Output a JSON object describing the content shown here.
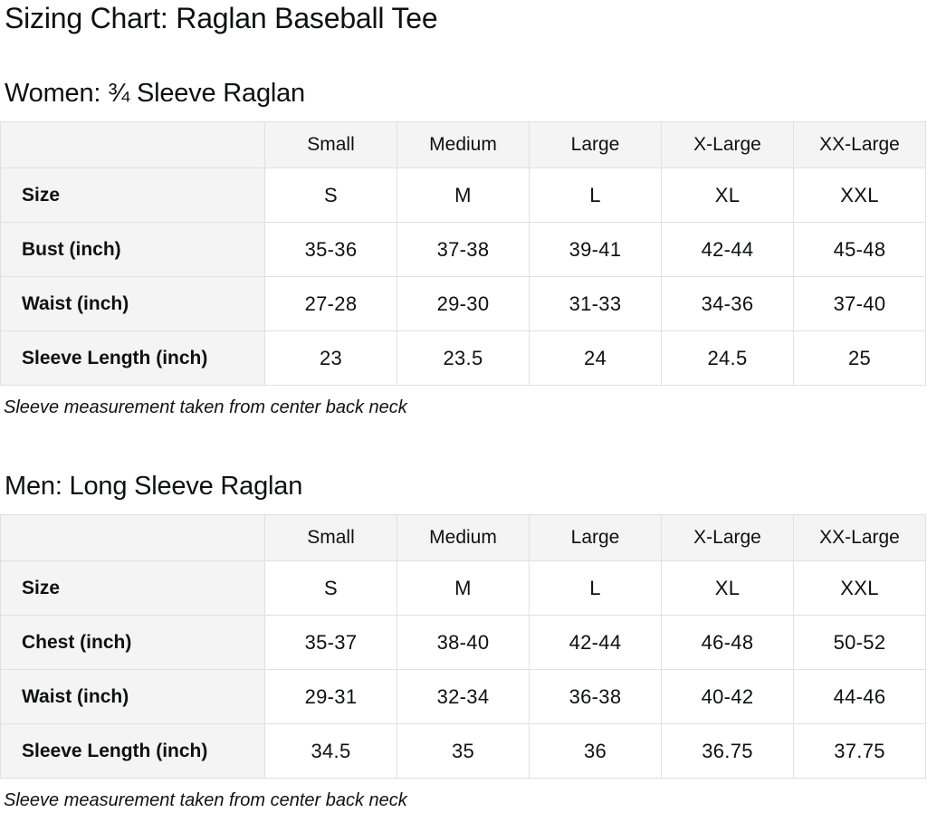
{
  "page": {
    "title": "Sizing Chart: Raglan Baseball Tee"
  },
  "colors": {
    "header_bg": "#f4f4f4",
    "border": "#e0e0e0",
    "text": "#0f1111"
  },
  "sections": [
    {
      "heading": "Women: ¾ Sleeve Raglan",
      "columns": [
        "Small",
        "Medium",
        "Large",
        "X-Large",
        "XX-Large"
      ],
      "rows": [
        {
          "label": "Size",
          "values": [
            "S",
            "M",
            "L",
            "XL",
            "XXL"
          ]
        },
        {
          "label": "Bust (inch)",
          "values": [
            "35-36",
            "37-38",
            "39-41",
            "42-44",
            "45-48"
          ]
        },
        {
          "label": "Waist (inch)",
          "values": [
            "27-28",
            "29-30",
            "31-33",
            "34-36",
            "37-40"
          ]
        },
        {
          "label": "Sleeve Length (inch)",
          "values": [
            "23",
            "23.5",
            "24",
            "24.5",
            "25"
          ]
        }
      ],
      "note": "Sleeve measurement taken from center back neck"
    },
    {
      "heading": "Men: Long Sleeve Raglan",
      "columns": [
        "Small",
        "Medium",
        "Large",
        "X-Large",
        "XX-Large"
      ],
      "rows": [
        {
          "label": "Size",
          "values": [
            "S",
            "M",
            "L",
            "XL",
            "XXL"
          ]
        },
        {
          "label": "Chest (inch)",
          "values": [
            "35-37",
            "38-40",
            "42-44",
            "46-48",
            "50-52"
          ]
        },
        {
          "label": "Waist (inch)",
          "values": [
            "29-31",
            "32-34",
            "36-38",
            "40-42",
            "44-46"
          ]
        },
        {
          "label": "Sleeve Length (inch)",
          "values": [
            "34.5",
            "35",
            "36",
            "36.75",
            "37.75"
          ]
        }
      ],
      "note": "Sleeve measurement taken from center back neck"
    }
  ]
}
